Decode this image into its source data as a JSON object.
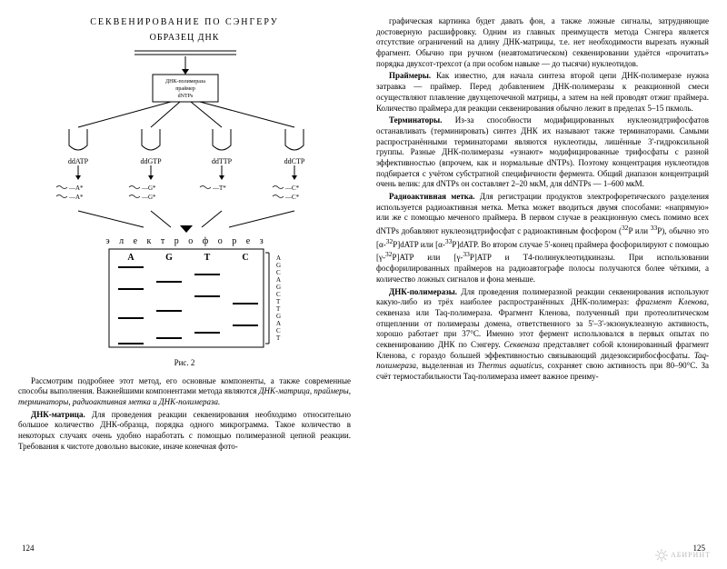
{
  "diagram": {
    "title": "СЕКВЕНИРОВАНИЕ ПО СЭНГЕРУ",
    "sample": "ОБРАЗЕЦ ДНК",
    "center_box": "ДНК-полимераза\nпраймер\ndNTPs",
    "tubes": [
      "ddATP",
      "ddGTP",
      "ddTTP",
      "ddCTP"
    ],
    "frag_sets": [
      [
        "—A*",
        "—A*"
      ],
      [
        "—G*",
        "—G*"
      ],
      [
        "—T*"
      ],
      [
        "—C*",
        "—C*"
      ]
    ],
    "electrophoresis": "э л е к т р о ф о р е з",
    "lanes": [
      "A",
      "G",
      "T",
      "C"
    ],
    "readout": "АGСАGСТТGАCТ",
    "caption": "Рис. 2"
  },
  "left": {
    "p1": "Рассмотрим подробнее этот метод, его основные компоненты, а также современные способы выполнения. Важнейшими компонентами метода являются ",
    "p1_it": "ДНК-матрица, праймеры, терминаторы, радиоактивная метка и ДНК-полимераза.",
    "p2_head": "ДНК-матрица.",
    "p2": " Для проведения реакции секвенирования необходимо относительно большое количество ДНК-образца, порядка одного микрограмма. Такое количество в некоторых случаях очень удобно наработать с помощью полимеразной цепной реакции. Требования к чистоте довольно высокие, иначе конечная фото-",
    "pagenum": "124"
  },
  "right": {
    "p1": "графическая картинка будет давать фон, а также ложные сигналы, затрудняющие достоверную расшифровку. Одним из главных преимуществ метода Сэнгера является отсутствие ограничений на длину ДНК-матрицы, т.е. нет необходимости вырезать нужный фрагмент. Обычно при ручном (неавтоматическом) секвенировании удаётся «прочитать» порядка двухсот-трехсот (а при особом навыке — до тысячи) нуклеотидов.",
    "p2_head": "Праймеры.",
    "p2": " Как известно, для начала синтеза второй цепи ДНК-полимеразе нужна затравка — праймер. Перед добавлением ДНК-полимеразы к реакционной смеси осуществляют плавление двухцепочечной матрицы, а затем на ней проводят отжиг праймера. Количество праймера для реакции секвенирования обычно лежит в пределах 5–15 пкмоль.",
    "p3_head": "Терминаторы.",
    "p3": " Из-за способности модифицированных нуклеозидтрифосфатов останавливать (терминировать) синтез ДНК их называют также терминаторами. Самыми распространёнными терминаторами являются нуклеотиды, лишённые 3'-гидроксильной группы. Разные ДНК-полимеразы «узнают» модифицированные трифосфаты с разной эффективностью (впрочем, как и нормальные dNTPs). Поэтому концентрация нуклеотидов подбирается с учётом субстратной специфичности фермента. Общий диапазон концентраций очень велик: для dNTPs он составляет 2–20 мкМ, для ddNTPs — 1–600 мкМ.",
    "p4_head": "Радиоактивная метка.",
    "p4a": " Для регистрации продуктов электрофоретического разделения используется радиоактивная метка. Метка может вводиться двумя способами: «напрямую» или же с помощью меченого праймера. В первом случае в реакционную смесь помимо всех dNTPs добавляют нуклеозидтрифосфат с радиоактивным фосфором (",
    "p4_sup1": "32",
    "p4b": "P или ",
    "p4_sup2": "33",
    "p4c": "P), обычно это [α-",
    "p4_sup3": "32",
    "p4d": "P]dATP или [α-",
    "p4_sup4": "33",
    "p4e": "P]dATP. Во втором случае 5'-конец праймера фосфорилируют с помощью [γ-",
    "p4_sup5": "32",
    "p4f": "P]ATP или [γ-",
    "p4_sup6": "33",
    "p4g": "P]ATP и T4-полинуклеотидкиназы. При использовании фосфорилированных праймеров на радиоавтографе полосы получаются более чёткими, а количество ложных сигналов и фона меньше.",
    "p5_head": "ДНК-полимеразы.",
    "p5a": " Для проведения полимеразной реакции секвенирования используют какую-либо из трёх наиболее распространённых ДНК-полимераз: ",
    "p5_it1": "фрагмент Кленова",
    "p5b": ", секвеназа или Taq-полимераза. Фрагмент Кленова, полученный при протеолитическом отщеплении от полимеразы домена, ответственного за 5'–3'-экзонуклеазную активность, хорошо работает при 37°C. Именно этот фермент использовался в первых опытах по секвенированию ДНК по Сэнгеру. ",
    "p5_it2": "Секвеназа",
    "p5c": " представляет собой клонированный фрагмент Кленова, с гораздо большей эффективностью связывающий дидезоксирибосфосфаты. ",
    "p5_it3": "Taq-полимераза",
    "p5d": ", выделенная из ",
    "p5_it4": "Thermus aquaticus",
    "p5e": ", сохраняет свою активность при 80–90°C. За счёт термостабильности Taq-полимераза имеет важное преиму-",
    "pagenum": "125"
  },
  "watermark": "АБИРИНТ"
}
